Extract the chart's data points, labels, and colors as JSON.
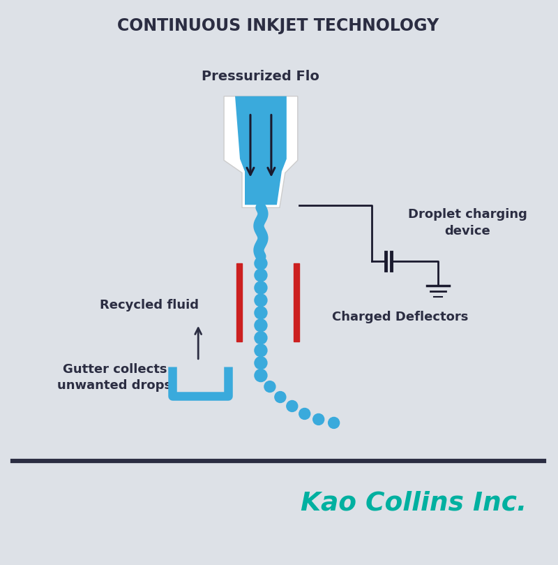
{
  "title": "CONTINUOUS INKJET TECHNOLOGY",
  "background_color": "#dde1e7",
  "title_color": "#2b2d42",
  "ink_blue": "#3aaadc",
  "nozzle_white": "#ffffff",
  "deflector_red": "#cc2020",
  "label_color": "#2b2d42",
  "brand_color": "#00b0a0",
  "line_color": "#1a1a2e",
  "label_pressurized": "Pressurized Flo",
  "label_droplet": "Droplet charging\ndevice",
  "label_deflectors": "Charged Deflectors",
  "label_recycled": "Recycled fluid",
  "label_gutter": "Gutter collects\nunwanted drops",
  "label_brand": "Kao Collins Inc.",
  "figsize": [
    8.0,
    8.09
  ]
}
